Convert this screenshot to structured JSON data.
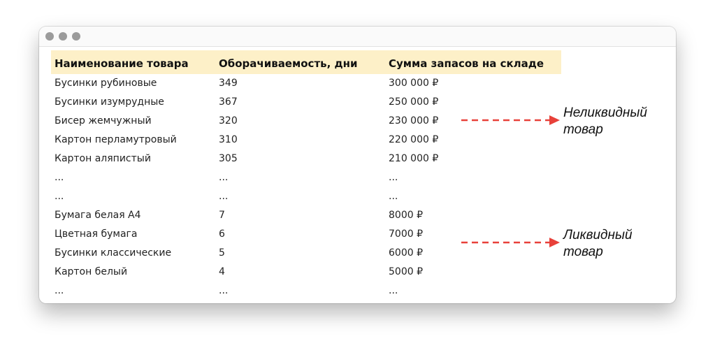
{
  "table": {
    "headers": [
      "Наименование товара",
      "Оборачиваемость, дни",
      "Сумма запасов на складе"
    ],
    "rows": [
      [
        "Бусинки рубиновые",
        "349",
        "300 000 ₽"
      ],
      [
        "Бусинки изумрудные",
        "367",
        "250 000 ₽"
      ],
      [
        "Бисер жемчужный",
        "320",
        "230 000 ₽"
      ],
      [
        "Картон перламутровый",
        "310",
        "220 000 ₽"
      ],
      [
        "Картон аляпистый",
        "305",
        "210 000 ₽"
      ],
      [
        "...",
        "...",
        "..."
      ],
      [
        "...",
        "...",
        "..."
      ],
      [
        "Бумага белая А4",
        "7",
        "8000 ₽"
      ],
      [
        "Цветная бумага",
        "6",
        "7000 ₽"
      ],
      [
        "Бусинки классические",
        "5",
        "6000 ₽"
      ],
      [
        "Картон белый",
        "4",
        "5000 ₽"
      ],
      [
        "...",
        "...",
        "..."
      ]
    ]
  },
  "annotations": [
    {
      "line1": "Неликвидный",
      "line2": "товар"
    },
    {
      "line1": "Ликвидный",
      "line2": "товар"
    }
  ],
  "colors": {
    "header_bg": "#fdf0c8",
    "arrow": "#e8413a"
  }
}
